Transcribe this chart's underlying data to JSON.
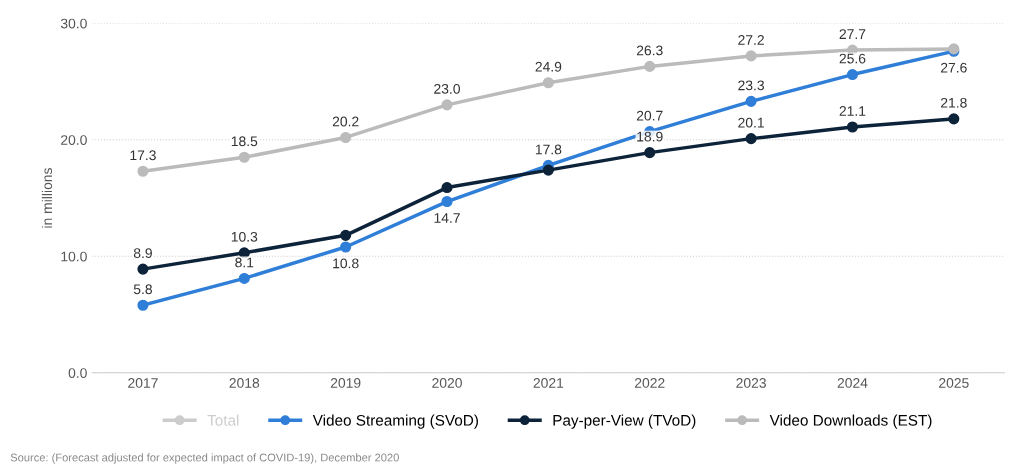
{
  "chart_data": {
    "type": "line",
    "ylabel": "in millions",
    "categories": [
      "2017",
      "2018",
      "2019",
      "2020",
      "2021",
      "2022",
      "2023",
      "2024",
      "2025"
    ],
    "series": [
      {
        "name": "Total",
        "color": "#cccccc",
        "values": [
          null,
          null,
          null,
          null,
          null,
          null,
          null,
          null,
          null
        ]
      },
      {
        "name": "Video Streaming (SVoD)",
        "color": "#2f7ed8",
        "values": [
          5.8,
          8.1,
          10.8,
          14.7,
          17.8,
          20.7,
          23.3,
          25.6,
          27.6
        ],
        "value_labels": [
          "5.8",
          "8.1",
          "10.8",
          "14.7",
          "17.8",
          "20.7",
          "23.3",
          "25.6",
          "27.6"
        ]
      },
      {
        "name": "Pay-per-View (TVoD)",
        "color": "#0d233a",
        "values": [
          8.9,
          10.3,
          11.8,
          15.9,
          17.4,
          18.9,
          20.1,
          21.1,
          21.8
        ],
        "value_labels": [
          "8.9",
          "10.3",
          null,
          null,
          null,
          "18.9",
          "20.1",
          "21.1",
          "21.8"
        ]
      },
      {
        "name": "Video Downloads (EST)",
        "color": "#bbbbbb",
        "values": [
          17.3,
          18.5,
          20.2,
          23.0,
          24.9,
          26.3,
          27.2,
          27.7,
          27.8
        ],
        "value_labels": [
          "17.3",
          "18.5",
          "20.2",
          "23.0",
          "24.9",
          "26.3",
          "27.2",
          "27.7",
          null
        ]
      }
    ],
    "ylim": [
      0,
      30
    ],
    "yticks": [
      {
        "value": 0,
        "label": "0.0"
      },
      {
        "value": 10,
        "label": "10.0"
      },
      {
        "value": 20,
        "label": "20.0"
      },
      {
        "value": 30,
        "label": "30.0"
      }
    ],
    "grid": "y",
    "legend": "bottom",
    "marker": "circle",
    "line_style": "solid",
    "annotations": [
      "Source: (Forecast adjusted for expected impact of COVID-19), December 2020"
    ]
  }
}
